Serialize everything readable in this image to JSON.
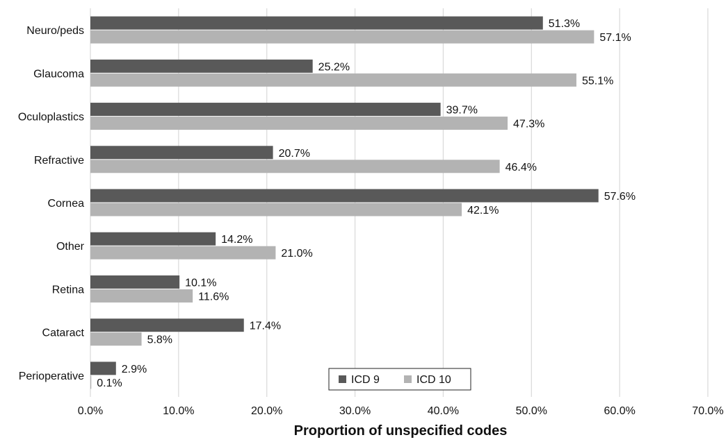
{
  "chart_data": {
    "type": "bar",
    "orientation": "horizontal",
    "title": "",
    "xlabel": "Proportion of unspecified codes",
    "ylabel": "",
    "xlim": [
      0,
      70
    ],
    "x_ticks": [
      "0.0%",
      "10.0%",
      "20.0%",
      "30.0%",
      "40.0%",
      "50.0%",
      "60.0%",
      "70.0%"
    ],
    "grid": "vertical",
    "legend_position": "bottom-center",
    "categories": [
      "Neuro/peds",
      "Glaucoma",
      "Oculoplastics",
      "Refractive",
      "Cornea",
      "Other",
      "Retina",
      "Cataract",
      "Perioperative"
    ],
    "series": [
      {
        "name": "ICD 9",
        "color": "#595959",
        "values": [
          51.3,
          25.2,
          39.7,
          20.7,
          57.6,
          14.2,
          10.1,
          17.4,
          2.9
        ],
        "labels": [
          "51.3%",
          "25.2%",
          "39.7%",
          "20.7%",
          "57.6%",
          "14.2%",
          "10.1%",
          "17.4%",
          "2.9%"
        ]
      },
      {
        "name": "ICD 10",
        "color": "#b3b3b3",
        "values": [
          57.1,
          55.1,
          47.3,
          46.4,
          42.1,
          21.0,
          11.6,
          5.8,
          0.1
        ],
        "labels": [
          "57.1%",
          "55.1%",
          "47.3%",
          "46.4%",
          "42.1%",
          "21.0%",
          "11.6%",
          "5.8%",
          "0.1%"
        ]
      }
    ]
  }
}
